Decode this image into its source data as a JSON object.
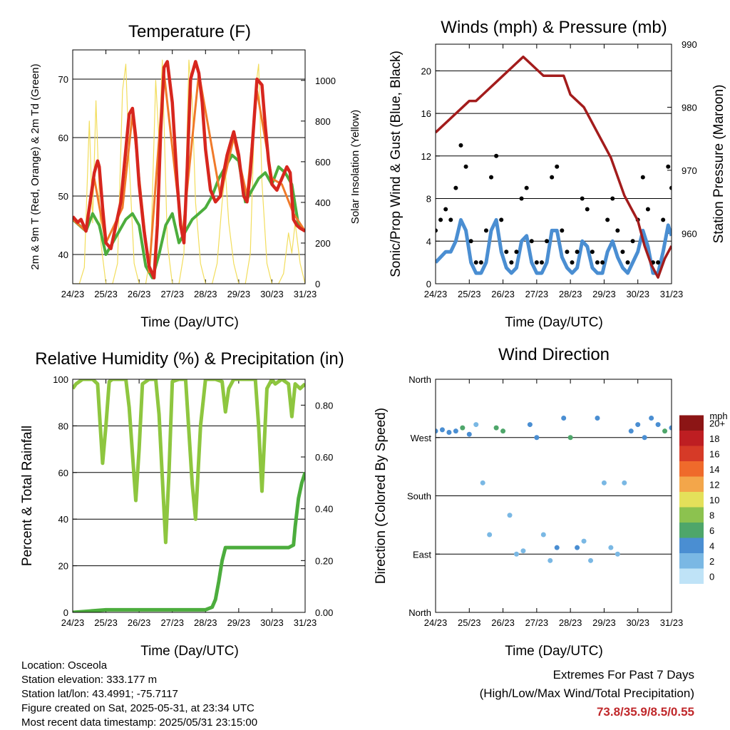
{
  "chart_data": [
    {
      "type": "line",
      "title": "Temperature (F)",
      "xlabel": "Time (Day/UTC)",
      "ylabel": "2m & 9m T (Red, Orange) & 2m Td (Green)",
      "y2label": "Solar Insolation (Yellow)",
      "x_ticks": [
        "24/23",
        "25/23",
        "26/23",
        "27/23",
        "28/23",
        "29/23",
        "30/23",
        "31/23"
      ],
      "xlim": [
        0,
        7
      ],
      "ylim": [
        35,
        75
      ],
      "y_ticks": [
        40,
        50,
        60,
        70
      ],
      "y2lim": [
        0,
        1150
      ],
      "y2_ticks": [
        0,
        200,
        400,
        600,
        800,
        1000
      ],
      "grid": true,
      "series": [
        {
          "color": "#d7261e",
          "x": [
            0,
            0.15,
            0.25,
            0.4,
            0.55,
            0.65,
            0.75,
            0.8,
            0.9,
            1.0,
            1.15,
            1.3,
            1.45,
            1.55,
            1.7,
            1.8,
            1.9,
            2.0,
            2.15,
            2.3,
            2.45,
            2.55,
            2.65,
            2.75,
            2.85,
            3.0,
            3.15,
            3.25,
            3.35,
            3.45,
            3.55,
            3.7,
            3.8,
            3.9,
            4.0,
            4.15,
            4.3,
            4.45,
            4.55,
            4.65,
            4.75,
            4.85,
            5.0,
            5.15,
            5.25,
            5.35,
            5.45,
            5.55,
            5.7,
            5.8,
            5.9,
            6.0,
            6.15,
            6.3,
            6.45,
            6.55,
            6.65,
            6.75,
            6.85,
            7.0
          ],
          "values": [
            46.5,
            45.5,
            46,
            44,
            50,
            54,
            56,
            55,
            48,
            42,
            41,
            45,
            49,
            55,
            64,
            65,
            60,
            52,
            44,
            38,
            36,
            45,
            61,
            72,
            73,
            66,
            52,
            45,
            42,
            55,
            70,
            73,
            71,
            66,
            58,
            51,
            49,
            50,
            54,
            57,
            59,
            61,
            57,
            50,
            49,
            54,
            62,
            70,
            69,
            62,
            56,
            52,
            51,
            53,
            55,
            54,
            46,
            45,
            44.5,
            44
          ]
        },
        {
          "color": "#f07a2a",
          "x": [
            0,
            0.4,
            0.65,
            1.0,
            1.5,
            1.8,
            2.3,
            2.75,
            3.3,
            3.8,
            4.45,
            4.85,
            5.25,
            5.55,
            6.0,
            6.3,
            6.65,
            7.0
          ],
          "values": [
            46,
            44,
            53,
            42,
            48,
            64,
            37,
            71,
            43,
            71,
            50,
            60,
            50,
            68,
            53,
            52,
            47,
            44
          ]
        },
        {
          "color": "#4cad3d",
          "x": [
            0,
            0.2,
            0.4,
            0.6,
            0.8,
            1.0,
            1.2,
            1.4,
            1.6,
            1.8,
            2.0,
            2.2,
            2.4,
            2.6,
            2.8,
            3.0,
            3.2,
            3.4,
            3.6,
            3.8,
            4.0,
            4.2,
            4.4,
            4.6,
            4.8,
            5.0,
            5.2,
            5.4,
            5.6,
            5.8,
            6.0,
            6.2,
            6.4,
            6.6,
            6.8,
            7.0
          ],
          "values": [
            46,
            45,
            44,
            47,
            45,
            40,
            42,
            44,
            46,
            47,
            45,
            38,
            36,
            40,
            45,
            47,
            42,
            44,
            46,
            47,
            48,
            50,
            53,
            55,
            57,
            56,
            49,
            51,
            53,
            54,
            52,
            55,
            54,
            52,
            45,
            44
          ]
        },
        {
          "color": "#f2dd5c",
          "x": [
            0,
            0.2,
            0.35,
            0.5,
            0.6,
            0.7,
            0.85,
            1.0,
            1.2,
            1.35,
            1.5,
            1.6,
            1.7,
            1.85,
            2.0,
            2.2,
            2.35,
            2.5,
            2.6,
            2.7,
            2.85,
            3.0,
            3.2,
            3.35,
            3.5,
            3.6,
            3.7,
            3.85,
            4.0,
            4.2,
            4.35,
            4.5,
            4.6,
            4.7,
            4.85,
            5.0,
            5.2,
            5.35,
            5.5,
            5.6,
            5.7,
            5.85,
            6.0,
            6.2,
            6.35,
            6.5,
            6.6,
            6.7,
            6.85,
            7.0
          ],
          "values": [
            0,
            0,
            80,
            800,
            300,
            900,
            200,
            0,
            0,
            100,
            950,
            1080,
            600,
            100,
            0,
            0,
            150,
            1000,
            700,
            1100,
            200,
            0,
            0,
            150,
            1100,
            900,
            400,
            100,
            0,
            0,
            100,
            400,
            550,
            300,
            100,
            0,
            0,
            150,
            950,
            1080,
            500,
            100,
            0,
            0,
            50,
            250,
            150,
            300,
            100,
            0
          ]
        }
      ]
    },
    {
      "type": "scatter",
      "title": "Winds (mph) & Pressure (mb)",
      "xlabel": "Time (Day/UTC)",
      "ylabel": "Sonic/Prop Wind & Gust (Blue, Black)",
      "y2label": "Station Pressure (Maroon)",
      "x_ticks": [
        "24/23",
        "25/23",
        "26/23",
        "27/23",
        "28/23",
        "29/23",
        "30/23",
        "31/23"
      ],
      "xlim": [
        0,
        7
      ],
      "ylim": [
        0,
        22.5
      ],
      "y_ticks": [
        0,
        4,
        8,
        12,
        16,
        20
      ],
      "y2lim": [
        952,
        990
      ],
      "y2_ticks": [
        960,
        970,
        980,
        990
      ],
      "grid": true,
      "series": [
        {
          "color": "#000000",
          "x": [
            0,
            0.15,
            0.3,
            0.45,
            0.6,
            0.75,
            0.9,
            1.05,
            1.2,
            1.35,
            1.5,
            1.65,
            1.8,
            1.95,
            2.1,
            2.25,
            2.4,
            2.55,
            2.7,
            2.85,
            3.0,
            3.15,
            3.3,
            3.45,
            3.6,
            3.75,
            3.9,
            4.05,
            4.2,
            4.35,
            4.5,
            4.65,
            4.8,
            4.95,
            5.1,
            5.25,
            5.4,
            5.55,
            5.7,
            5.85,
            6.0,
            6.15,
            6.3,
            6.45,
            6.6,
            6.75,
            6.9,
            7.0
          ],
          "values": [
            5,
            6,
            7,
            6,
            9,
            13,
            11,
            4,
            2,
            2,
            5,
            10,
            12,
            6,
            3,
            2,
            3,
            8,
            9,
            4,
            2,
            2,
            4,
            10,
            11,
            5,
            3,
            2,
            3,
            8,
            7,
            3,
            2,
            2,
            6,
            8,
            5,
            3,
            2,
            4,
            6,
            10,
            7,
            2,
            2,
            6,
            11,
            9
          ]
        },
        {
          "color": "#4a8ed2",
          "x": [
            0,
            0.15,
            0.3,
            0.45,
            0.6,
            0.75,
            0.9,
            1.05,
            1.2,
            1.35,
            1.5,
            1.65,
            1.8,
            1.95,
            2.1,
            2.25,
            2.4,
            2.55,
            2.7,
            2.85,
            3.0,
            3.15,
            3.3,
            3.45,
            3.6,
            3.75,
            3.9,
            4.05,
            4.2,
            4.35,
            4.5,
            4.65,
            4.8,
            4.95,
            5.1,
            5.25,
            5.4,
            5.55,
            5.7,
            5.85,
            6.0,
            6.15,
            6.3,
            6.45,
            6.6,
            6.75,
            6.9,
            7.0
          ],
          "values": [
            2,
            2.5,
            3,
            3,
            4,
            6,
            5,
            2,
            1,
            1,
            2,
            5,
            6,
            3,
            1.5,
            1,
            1.5,
            4,
            4.5,
            2,
            1,
            1,
            2,
            5,
            5,
            2.5,
            1.5,
            1,
            1.5,
            4,
            3.5,
            1.5,
            1,
            1,
            3,
            4,
            2.5,
            1.5,
            1,
            2,
            3,
            5,
            3.5,
            1,
            1,
            3,
            5.5,
            4.5
          ]
        },
        {
          "color": "#a31c1c",
          "x": [
            0,
            0.2,
            0.4,
            0.6,
            0.8,
            1.0,
            1.2,
            1.4,
            1.6,
            1.8,
            2.0,
            2.2,
            2.4,
            2.6,
            2.8,
            3.0,
            3.2,
            3.4,
            3.6,
            3.8,
            4.0,
            4.2,
            4.4,
            4.6,
            4.8,
            5.0,
            5.2,
            5.4,
            5.6,
            5.8,
            6.0,
            6.2,
            6.4,
            6.6,
            6.8,
            7.0
          ],
          "values": [
            976,
            977,
            978,
            979,
            980,
            981,
            981,
            982,
            983,
            984,
            985,
            986,
            987,
            988,
            987,
            986,
            985,
            985,
            985,
            985,
            982,
            981,
            980,
            978,
            976,
            974,
            972,
            969,
            966,
            964,
            962,
            958,
            955,
            953,
            956,
            958
          ]
        }
      ]
    },
    {
      "type": "line",
      "title": "Relative Humidity (%) & Precipitation (in)",
      "xlabel": "Time (Day/UTC)",
      "ylabel": "Percent & Total Rainfall",
      "x_ticks": [
        "24/23",
        "25/23",
        "26/23",
        "27/23",
        "28/23",
        "29/23",
        "30/23",
        "31/23"
      ],
      "xlim": [
        0,
        7
      ],
      "ylim": [
        0,
        100
      ],
      "y_ticks": [
        0,
        20,
        40,
        60,
        80,
        100
      ],
      "y2lim": [
        0,
        0.9
      ],
      "y2_ticks": [
        0,
        0.2,
        0.4,
        0.6,
        0.8
      ],
      "y2_tick_labels": [
        "0.00",
        "0.20",
        "0.40",
        "0.60",
        "0.80"
      ],
      "grid": true,
      "series": [
        {
          "color": "#8ec63f",
          "x": [
            0,
            0.1,
            0.3,
            0.6,
            0.75,
            0.9,
            1.0,
            1.1,
            1.2,
            1.4,
            1.6,
            1.7,
            1.9,
            2.0,
            2.1,
            2.3,
            2.5,
            2.6,
            2.8,
            2.9,
            3.0,
            3.2,
            3.4,
            3.6,
            3.7,
            3.85,
            4.0,
            4.1,
            4.3,
            4.5,
            4.6,
            4.7,
            4.85,
            5.0,
            5.2,
            5.4,
            5.5,
            5.6,
            5.7,
            5.85,
            6.0,
            6.1,
            6.3,
            6.5,
            6.6,
            6.7,
            6.85,
            7.0
          ],
          "values": [
            96,
            98,
            100,
            100,
            98,
            64,
            80,
            99,
            100,
            100,
            100,
            88,
            48,
            70,
            98,
            100,
            100,
            85,
            30,
            60,
            99,
            100,
            100,
            55,
            40,
            80,
            100,
            100,
            100,
            99,
            86,
            96,
            100,
            100,
            100,
            100,
            100,
            80,
            52,
            96,
            100,
            98,
            100,
            98,
            84,
            98,
            96,
            98
          ]
        },
        {
          "color": "#4cad3d",
          "x": [
            0,
            1,
            2,
            3,
            4,
            4.2,
            4.3,
            4.4,
            4.5,
            4.6,
            5.0,
            5.5,
            6.0,
            6.5,
            6.65,
            6.7,
            6.8,
            6.9,
            7.0
          ],
          "values": [
            0,
            0.01,
            0.01,
            0.01,
            0.01,
            0.02,
            0.05,
            0.12,
            0.2,
            0.25,
            0.25,
            0.25,
            0.25,
            0.25,
            0.26,
            0.33,
            0.44,
            0.5,
            0.54
          ]
        }
      ]
    },
    {
      "type": "scatter",
      "title": "Wind Direction",
      "xlabel": "Time (Day/UTC)",
      "ylabel": "Direction (Colored By Speed)",
      "x_ticks": [
        "24/23",
        "25/23",
        "26/23",
        "27/23",
        "28/23",
        "29/23",
        "30/23",
        "31/23"
      ],
      "xlim": [
        0,
        7
      ],
      "ylim": [
        0,
        360
      ],
      "y_tick_labels": [
        "North",
        "East",
        "South",
        "West",
        "North"
      ],
      "legend": {
        "title": "mph",
        "labels": [
          "0",
          "2",
          "4",
          "6",
          "8",
          "10",
          "12",
          "14",
          "16",
          "18",
          "20+"
        ],
        "colors": [
          "#bfe3f7",
          "#7ab8e4",
          "#4a8ed2",
          "#4ea66a",
          "#8cc24f",
          "#e4e05a",
          "#f3a64a",
          "#ef6a2b",
          "#d63a27",
          "#be1e22",
          "#8c1515"
        ]
      },
      "x": [
        0,
        0.2,
        0.4,
        0.6,
        0.8,
        1.0,
        1.2,
        1.4,
        1.6,
        1.8,
        2.0,
        2.2,
        2.4,
        2.6,
        2.8,
        3.0,
        3.2,
        3.4,
        3.6,
        3.8,
        4.0,
        4.2,
        4.4,
        4.6,
        4.8,
        5.0,
        5.2,
        5.4,
        5.6,
        5.8,
        6.0,
        6.2,
        6.4,
        6.6,
        6.8,
        7.0
      ],
      "values": [
        280,
        282,
        278,
        280,
        285,
        275,
        290,
        200,
        120,
        285,
        280,
        150,
        90,
        95,
        290,
        270,
        120,
        80,
        100,
        300,
        270,
        100,
        110,
        80,
        300,
        200,
        100,
        90,
        200,
        280,
        290,
        270,
        300,
        290,
        280,
        285
      ],
      "speeds": [
        3,
        3,
        3,
        4,
        6,
        3,
        2,
        1,
        1,
        5,
        6,
        2,
        1,
        2,
        4,
        3,
        2,
        2,
        3,
        4,
        5,
        3,
        2,
        2,
        3,
        2,
        1,
        1,
        2,
        3,
        4,
        4,
        3,
        4,
        6,
        4
      ]
    }
  ],
  "footer": {
    "location": "Location: Osceola",
    "elevation": "Station elevation: 333.177 m",
    "latlon": "Station lat/lon: 43.4991; -75.7117",
    "created": "Figure created on Sat, 2025-05-31, at 23:34 UTC",
    "recent": "Most recent data timestamp: 2025/05/31 23:15:00"
  },
  "extremes": {
    "title": "Extremes For Past 7 Days",
    "subtitle": "(High/Low/Max Wind/Total Precipitation)",
    "values": "73.8/35.9/8.5/0.55",
    "color": "#c0282b"
  }
}
